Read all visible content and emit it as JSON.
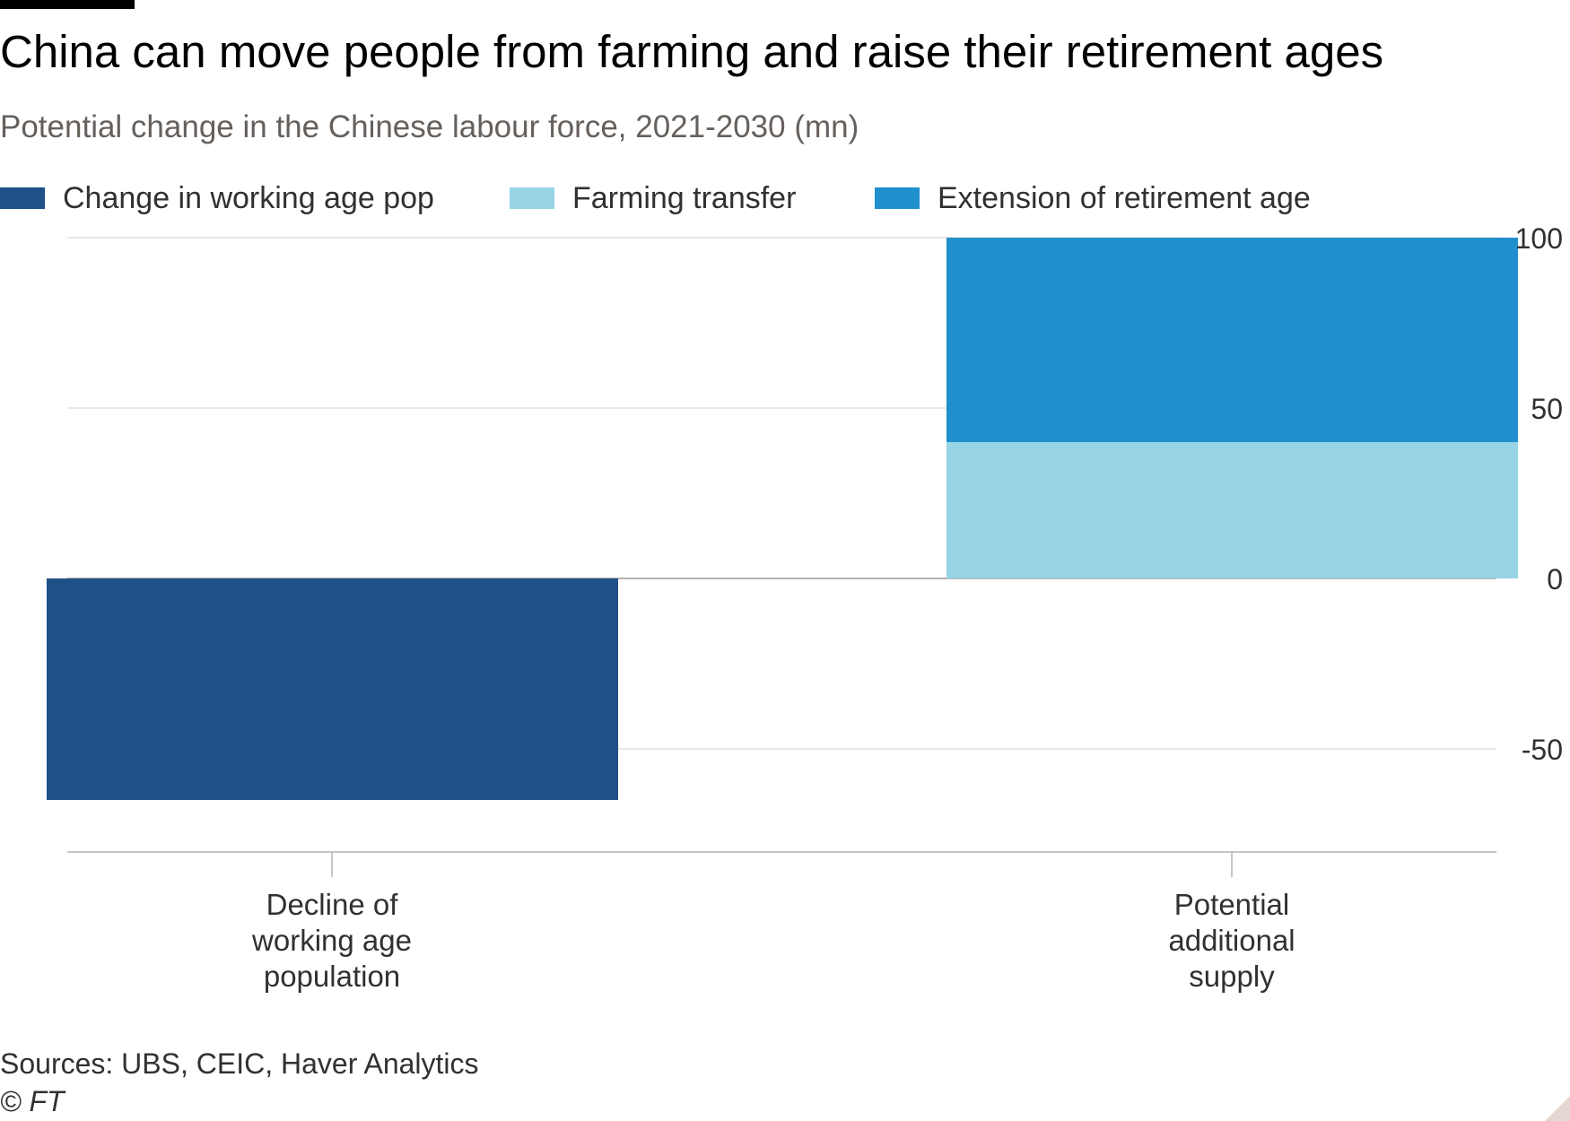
{
  "chart_data": {
    "type": "bar",
    "stacked": true,
    "title": "China can move people from farming and raise their retirement ages",
    "subtitle": "Potential change in the Chinese labour force, 2021-2030 (mn)",
    "categories": [
      "Decline of working age population",
      "Potential additional supply"
    ],
    "category_lines": [
      [
        "Decline of",
        "working age",
        "population"
      ],
      [
        "Potential",
        "additional",
        "supply"
      ]
    ],
    "series": [
      {
        "name": "Change in working age pop",
        "color": "#1f5189",
        "values": [
          -65,
          0
        ]
      },
      {
        "name": "Farming transfer",
        "color": "#96d4e6",
        "values": [
          0,
          40
        ]
      },
      {
        "name": "Extension of retirement age",
        "color": "#1f8fcd",
        "values": [
          0,
          60
        ]
      }
    ],
    "ylim": [
      -80,
      100
    ],
    "yticks": [
      100,
      50,
      0,
      -50
    ],
    "ytick_labels": [
      "100",
      "50",
      "0",
      "-50"
    ],
    "y_axis_side": "right",
    "grid": true,
    "legend_position": "top-left",
    "source": "Sources: UBS, CEIC, Haver Analytics",
    "copyright": "© FT"
  }
}
